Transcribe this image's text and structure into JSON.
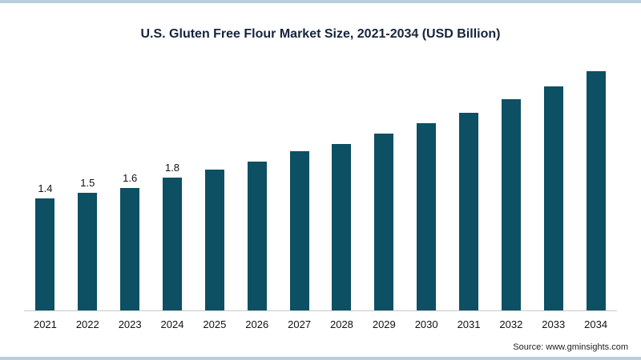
{
  "page": {
    "title": "U.S. Gluten Free Flour Market Size, 2021-2034 (USD Billion)",
    "source_text": "Source: www.gminsights.com"
  },
  "colors": {
    "bar": "#0d4f63",
    "accent_border": "#b9d0dc",
    "baseline": "#c9c9c9",
    "title_text": "#16243d"
  },
  "chart_data": {
    "type": "bar",
    "title": "U.S. Gluten Free Flour Market Size, 2021-2034 (USD Billion)",
    "categories": [
      "2021",
      "2022",
      "2023",
      "2024",
      "2025",
      "2026",
      "2027",
      "2028",
      "2029",
      "2030",
      "2031",
      "2032",
      "2033",
      "2034"
    ],
    "values": [
      1.4,
      1.5,
      1.6,
      1.8,
      1.95,
      2.1,
      2.3,
      2.45,
      2.65,
      2.85,
      3.05,
      3.3,
      3.55,
      3.85
    ],
    "value_labels": [
      "1.4",
      "1.5",
      "1.6",
      "1.8",
      "",
      "",
      "",
      "",
      "",
      "",
      "",
      "",
      "",
      ""
    ],
    "xlabel": "",
    "ylabel": "",
    "ylim": [
      0,
      4.2
    ],
    "grid": false,
    "legend": null,
    "source": "www.gminsights.com"
  }
}
